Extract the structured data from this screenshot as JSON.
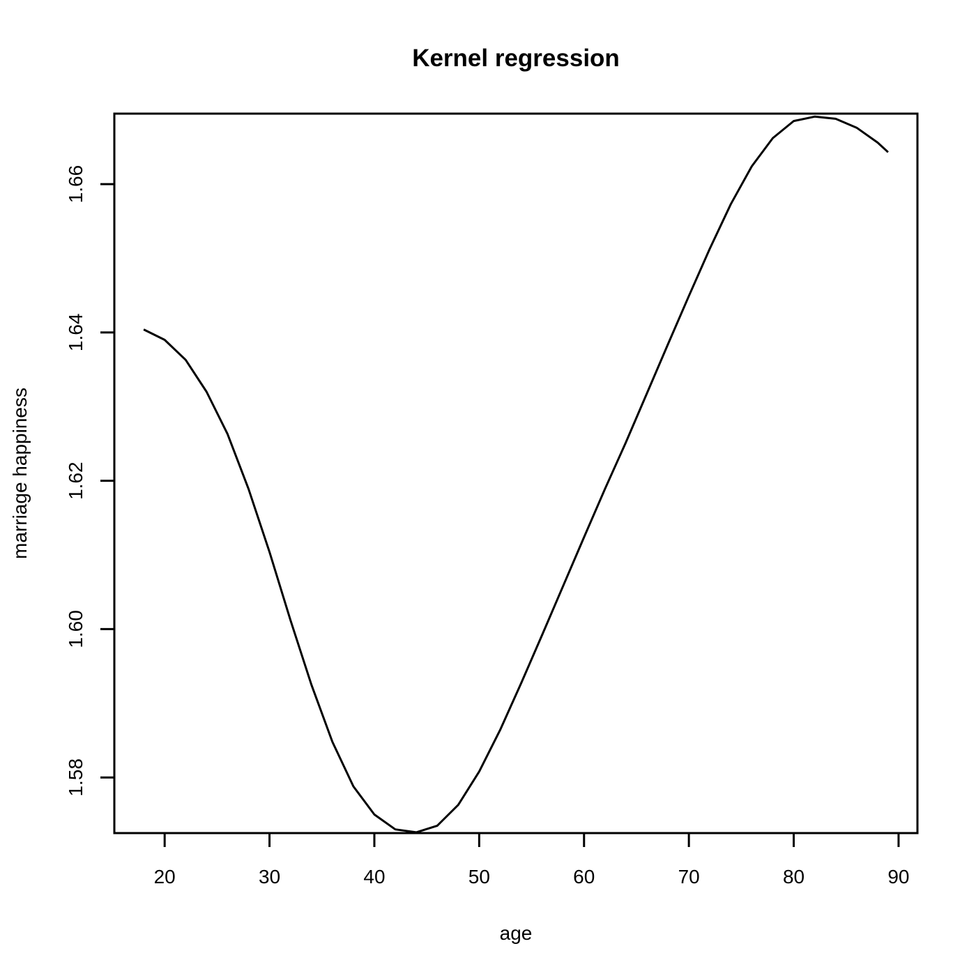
{
  "chart_data": {
    "type": "line",
    "title": "Kernel regression",
    "xlabel": "age",
    "ylabel": "marriage happiness",
    "xlim": [
      15.2,
      91.8
    ],
    "ylim": [
      1.5725,
      1.6695
    ],
    "xticks": [
      20,
      30,
      40,
      50,
      60,
      70,
      80,
      90
    ],
    "xtick_labels": [
      "20",
      "30",
      "40",
      "50",
      "60",
      "70",
      "80",
      "90"
    ],
    "yticks": [
      1.58,
      1.6,
      1.62,
      1.64,
      1.66
    ],
    "ytick_labels": [
      "1.58",
      "1.60",
      "1.62",
      "1.64",
      "1.66"
    ],
    "grid": false,
    "legend": "none",
    "line_color": "#000000",
    "series": [
      {
        "x": [
          18,
          20,
          22,
          24,
          26,
          28,
          30,
          32,
          34,
          36,
          38,
          40,
          42,
          44,
          46,
          48,
          50,
          52,
          54,
          56,
          58,
          60,
          62,
          64,
          66,
          68,
          70,
          72,
          74,
          76,
          78,
          80,
          82,
          84,
          86,
          88,
          89
        ],
        "y": [
          1.6404,
          1.639,
          1.6363,
          1.632,
          1.6263,
          1.6189,
          1.6104,
          1.6012,
          1.5925,
          1.5848,
          1.5788,
          1.575,
          1.573,
          1.5726,
          1.5735,
          1.5763,
          1.5808,
          1.5864,
          1.5927,
          1.5992,
          1.6058,
          1.6124,
          1.6189,
          1.6252,
          1.6318,
          1.6384,
          1.6449,
          1.6513,
          1.6573,
          1.6624,
          1.6662,
          1.6685,
          1.6691,
          1.6688,
          1.6676,
          1.6656,
          1.6643
        ]
      }
    ]
  }
}
